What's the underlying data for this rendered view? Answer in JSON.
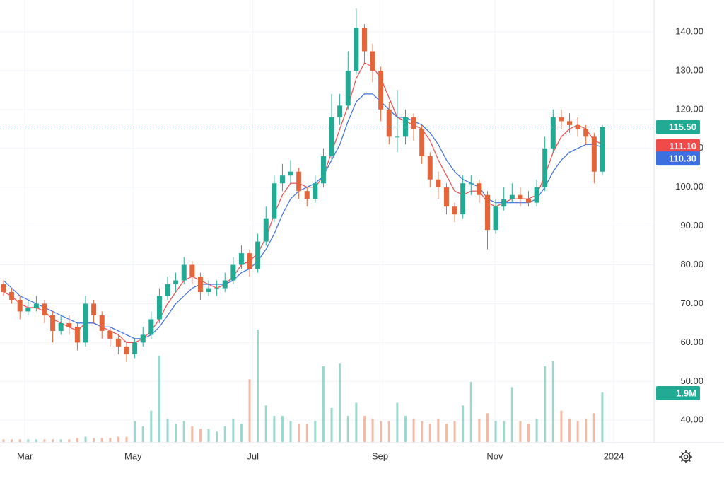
{
  "chart_data": {
    "type": "candlestick",
    "ylim": [
      34.4,
      148.2
    ],
    "yticks": [
      {
        "value": 40,
        "label": "40.00"
      },
      {
        "value": 50,
        "label": "50.00"
      },
      {
        "value": 60,
        "label": "60.00"
      },
      {
        "value": 70,
        "label": "70.00"
      },
      {
        "value": 80,
        "label": "80.00"
      },
      {
        "value": 90,
        "label": "90.00"
      },
      {
        "value": 100,
        "label": "100.00"
      },
      {
        "value": 110,
        "label": "110.00"
      },
      {
        "value": 120,
        "label": "120.00"
      },
      {
        "value": 130,
        "label": "130.00"
      },
      {
        "value": 140,
        "label": "140.00"
      }
    ],
    "xlim": [
      -0.43,
      79.3
    ],
    "xticks": [
      {
        "value": 2.6,
        "label": "Mar"
      },
      {
        "value": 15.8,
        "label": "May"
      },
      {
        "value": 30.4,
        "label": "Jul"
      },
      {
        "value": 45.9,
        "label": "Sep"
      },
      {
        "value": 59.9,
        "label": "Nov"
      },
      {
        "value": 74.4,
        "label": "2024"
      }
    ],
    "grid": true,
    "up_color": "#22ab94",
    "down_color": "#e5653a",
    "ohlc": [
      [
        75,
        76,
        72,
        73
      ],
      [
        73,
        74,
        70,
        71
      ],
      [
        71,
        72,
        66,
        68
      ],
      [
        68,
        71,
        67,
        69
      ],
      [
        69,
        72,
        68,
        70
      ],
      [
        70,
        71,
        65,
        67
      ],
      [
        67,
        68,
        60,
        63
      ],
      [
        63,
        67,
        62,
        65
      ],
      [
        65,
        67,
        62,
        64
      ],
      [
        64,
        65,
        58,
        60
      ],
      [
        60,
        72,
        59,
        70
      ],
      [
        70,
        71,
        65,
        67
      ],
      [
        67,
        68,
        61,
        63
      ],
      [
        63,
        64,
        59,
        61
      ],
      [
        61,
        62,
        57,
        59
      ],
      [
        59,
        60,
        55,
        57
      ],
      [
        57,
        61,
        56,
        60
      ],
      [
        60,
        64,
        59,
        62
      ],
      [
        62,
        68,
        61,
        66
      ],
      [
        66,
        74,
        65,
        72
      ],
      [
        72,
        77,
        71,
        75
      ],
      [
        75,
        78,
        73,
        76
      ],
      [
        76,
        82,
        75,
        80
      ],
      [
        80,
        81,
        75,
        77
      ],
      [
        77,
        78,
        71,
        73
      ],
      [
        73,
        76,
        72,
        74
      ],
      [
        74,
        76,
        72,
        74
      ],
      [
        74,
        78,
        73,
        76
      ],
      [
        76,
        82,
        75,
        80
      ],
      [
        80,
        85,
        79,
        83
      ],
      [
        83,
        84,
        77,
        79
      ],
      [
        79,
        88,
        78,
        86
      ],
      [
        86,
        95,
        85,
        92
      ],
      [
        92,
        103,
        91,
        101
      ],
      [
        101,
        106,
        99,
        103
      ],
      [
        103,
        107,
        101,
        104
      ],
      [
        104,
        105,
        97,
        99
      ],
      [
        99,
        100,
        95,
        97
      ],
      [
        97,
        103,
        96,
        101
      ],
      [
        101,
        110,
        100,
        108
      ],
      [
        108,
        124,
        107,
        118
      ],
      [
        118,
        124,
        116,
        121
      ],
      [
        121,
        135,
        120,
        130
      ],
      [
        130,
        146,
        129,
        141
      ],
      [
        141,
        142,
        132,
        135
      ],
      [
        135,
        137,
        127,
        130
      ],
      [
        130,
        131,
        117,
        120
      ],
      [
        120,
        122,
        111,
        113
      ],
      [
        113,
        125,
        109,
        113
      ],
      [
        113,
        120,
        111,
        118
      ],
      [
        118,
        119,
        112,
        115
      ],
      [
        115,
        116,
        106,
        108
      ],
      [
        108,
        109,
        100,
        102
      ],
      [
        102,
        104,
        97,
        100
      ],
      [
        100,
        101,
        93,
        95
      ],
      [
        95,
        96,
        91,
        93
      ],
      [
        93,
        103,
        92,
        101
      ],
      [
        101,
        103,
        98,
        101
      ],
      [
        101,
        102,
        96,
        98
      ],
      [
        98,
        99,
        84,
        89
      ],
      [
        89,
        97,
        88,
        95
      ],
      [
        95,
        100,
        94,
        97
      ],
      [
        97,
        101,
        96,
        98
      ],
      [
        98,
        100,
        95,
        97
      ],
      [
        97,
        99,
        95,
        96
      ],
      [
        96,
        102,
        95,
        100
      ],
      [
        100,
        113,
        99,
        110
      ],
      [
        110,
        120,
        109,
        118
      ],
      [
        118,
        120,
        115,
        117
      ],
      [
        117,
        119,
        114,
        116
      ],
      [
        116,
        118,
        113,
        115
      ],
      [
        115,
        116,
        111,
        113
      ],
      [
        113,
        114,
        101,
        104
      ],
      [
        104,
        116,
        103,
        115.5
      ]
    ],
    "last_price_label": "115.50",
    "volume": [
      0.1,
      0.1,
      0.1,
      0.1,
      0.1,
      0.1,
      0.1,
      0.1,
      0.1,
      0.15,
      0.2,
      0.15,
      0.15,
      0.15,
      0.2,
      0.2,
      0.8,
      0.6,
      1.2,
      3.3,
      0.9,
      0.7,
      0.8,
      0.6,
      0.5,
      0.5,
      0.4,
      0.6,
      0.9,
      0.7,
      2.4,
      4.3,
      1.4,
      1.0,
      1.0,
      0.8,
      0.7,
      0.7,
      0.8,
      2.9,
      1.3,
      3.0,
      1.0,
      1.5,
      1.0,
      0.9,
      0.8,
      0.8,
      1.5,
      1.0,
      0.9,
      0.8,
      0.7,
      0.9,
      0.7,
      0.8,
      1.4,
      2.3,
      0.9,
      1.1,
      0.8,
      0.8,
      2.1,
      0.8,
      0.7,
      0.9,
      2.9,
      3.1,
      1.2,
      0.9,
      0.8,
      0.9,
      1.1,
      1.9
    ],
    "vlim": [
      0,
      6.5
    ],
    "last_volume_label": "1.9M",
    "series": [
      {
        "color": "#f04a4a",
        "values": [
          73,
          72,
          70,
          69,
          69,
          68,
          66,
          65,
          64,
          63,
          65,
          65,
          64,
          63,
          62,
          60,
          60,
          61,
          63,
          66,
          70,
          73,
          76,
          77,
          76,
          75,
          74,
          75,
          77,
          80,
          81,
          83,
          87,
          93,
          98,
          101,
          101,
          100,
          100,
          103,
          109,
          115,
          121,
          128,
          132,
          131,
          128,
          123,
          118,
          117,
          116,
          115,
          112,
          107,
          103,
          99,
          98,
          99,
          99,
          96,
          95,
          96,
          97,
          97,
          97,
          98,
          103,
          109,
          113,
          115,
          116,
          115,
          112,
          111.1
        ],
        "last_label": "111.10"
      },
      {
        "color": "#3c6fe0",
        "values": [
          76,
          74,
          72,
          71,
          70,
          69,
          68,
          67,
          66,
          65,
          65,
          65,
          64,
          64,
          63,
          62,
          61,
          61,
          62,
          64,
          67,
          70,
          72,
          74,
          75,
          75,
          75,
          75,
          76,
          78,
          79,
          81,
          84,
          88,
          93,
          97,
          99,
          100,
          101,
          103,
          107,
          111,
          117,
          122,
          124,
          124,
          122,
          120,
          118,
          118,
          117,
          116,
          114,
          111,
          107,
          104,
          102,
          101,
          100,
          97,
          96,
          96,
          96,
          96,
          96,
          97,
          100,
          104,
          107,
          109,
          110,
          111,
          111,
          110.3
        ],
        "last_label": "110.30"
      }
    ]
  }
}
